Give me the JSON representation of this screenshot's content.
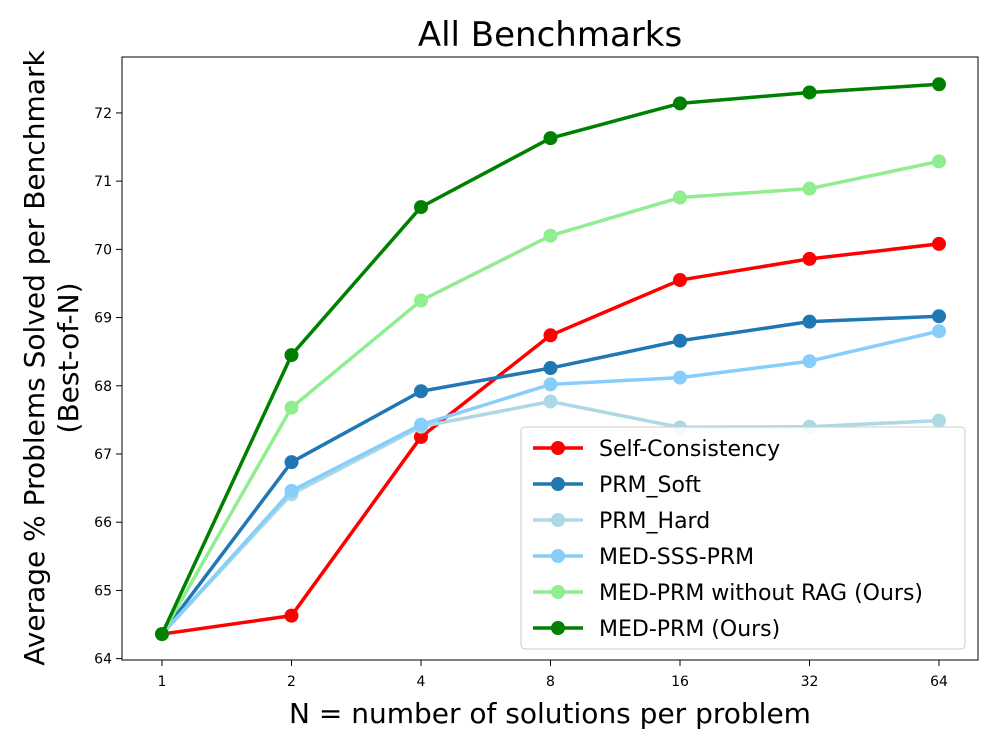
{
  "chart_data": {
    "type": "line",
    "title": "All Benchmarks",
    "xlabel": "N = number of solutions per problem",
    "ylabel_line1": "Average % Problems Solved per Benchmark",
    "ylabel_line2": "(Best-of-N)",
    "categories": [
      "1",
      "2",
      "4",
      "8",
      "16",
      "32",
      "64"
    ],
    "yticks": [
      64,
      65,
      66,
      67,
      68,
      69,
      70,
      71,
      72
    ],
    "ylim": [
      63.98,
      72.82
    ],
    "legend_position": "lower-right",
    "series": [
      {
        "name": "Self-Consistency",
        "color": "#ff0000",
        "values": [
          64.36,
          64.63,
          67.25,
          68.74,
          69.55,
          69.86,
          70.08
        ]
      },
      {
        "name": "PRM_Soft",
        "color": "#1f77b4",
        "values": [
          64.36,
          66.88,
          67.92,
          68.26,
          68.66,
          68.94,
          69.02
        ]
      },
      {
        "name": "PRM_Hard",
        "color": "#add8e6",
        "values": [
          64.36,
          66.41,
          67.4,
          67.77,
          67.39,
          67.4,
          67.49
        ]
      },
      {
        "name": "MED-SSS-PRM",
        "color": "#87cefa",
        "values": [
          64.36,
          66.46,
          67.43,
          68.02,
          68.12,
          68.36,
          68.8
        ]
      },
      {
        "name": "MED-PRM without RAG (Ours)",
        "color": "#90ee90",
        "values": [
          64.36,
          67.68,
          69.25,
          70.2,
          70.76,
          70.89,
          71.29
        ]
      },
      {
        "name": "MED-PRM (Ours)",
        "color": "#008000",
        "values": [
          64.36,
          68.45,
          70.62,
          71.63,
          72.14,
          72.3,
          72.42
        ]
      }
    ]
  }
}
